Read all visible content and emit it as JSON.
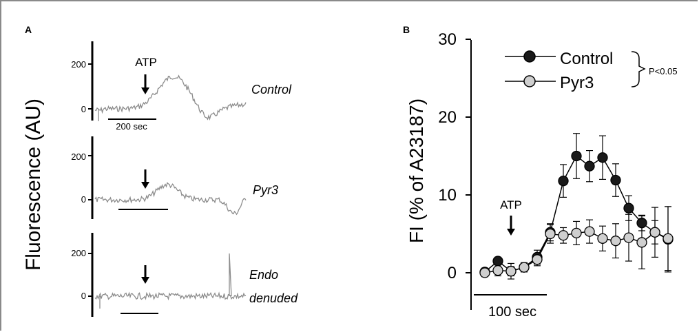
{
  "colors": {
    "control": "#1a1a1a",
    "pyr3": "#cfcfcf",
    "trace": "#8c8c8c",
    "axis": "#000000"
  },
  "panel_a": {
    "label": "A",
    "ylabel": "Fluorescence (AU)",
    "stimulus": "ATP",
    "scalebar_label": "200 sec",
    "traces": [
      {
        "name": "Control",
        "ticks": [
          "200",
          "0"
        ]
      },
      {
        "name": "Pyr3",
        "ticks": [
          "200",
          "0"
        ]
      },
      {
        "name_lines": [
          "Endo",
          "denuded"
        ],
        "ticks": [
          "200",
          "0"
        ]
      }
    ]
  },
  "panel_b": {
    "label": "B",
    "stimulus": "ATP",
    "scalebar_label": "100 sec",
    "significance": "P<0.05"
  },
  "chart_data": [
    {
      "type": "line",
      "panel": "A",
      "ylabel": "Fluorescence (AU)",
      "yticks": [
        0,
        200
      ],
      "series": [
        {
          "name": "Control",
          "baseline": 0,
          "peak": 160,
          "stimulus_time_sec": 130
        },
        {
          "name": "Pyr3",
          "baseline": 0,
          "peak": 60,
          "stimulus_time_sec": 130
        },
        {
          "name": "Endo denuded",
          "baseline": 0,
          "peak": 20,
          "stimulus_time_sec": 130
        }
      ],
      "scalebar_sec": 200
    },
    {
      "type": "line",
      "panel": "B",
      "ylabel": "FI (% of A23187)",
      "ylim": [
        -2,
        30
      ],
      "yticks": [
        0,
        10,
        20,
        30
      ],
      "x_index": [
        0,
        1,
        2,
        3,
        4,
        5,
        6,
        7,
        8,
        9,
        10,
        11,
        12,
        13,
        14
      ],
      "series": [
        {
          "name": "Control",
          "values": [
            0.1,
            1.5,
            0.2,
            0.7,
            2.0,
            5.2,
            11.8,
            15.0,
            13.7,
            14.8,
            11.9,
            8.3,
            6.4,
            5.2,
            4.3
          ],
          "errors": [
            0.5,
            0.5,
            0.6,
            0.6,
            0.9,
            1.1,
            2.1,
            2.9,
            2.0,
            2.8,
            2.1,
            1.6,
            1.0,
            1.5,
            4.2
          ]
        },
        {
          "name": "Pyr3",
          "values": [
            0.0,
            0.3,
            0.2,
            0.7,
            1.7,
            5.0,
            4.8,
            5.1,
            5.3,
            4.4,
            4.1,
            4.5,
            3.9,
            5.2,
            4.4
          ],
          "errors": [
            0.5,
            0.7,
            1.0,
            0.5,
            0.8,
            1.2,
            1.0,
            1.5,
            1.5,
            1.6,
            2.2,
            3.0,
            3.4,
            3.2,
            4.1
          ]
        }
      ],
      "stimulus": "ATP",
      "scalebar_sec": 100,
      "legend": "top",
      "significance": "P<0.05"
    }
  ]
}
